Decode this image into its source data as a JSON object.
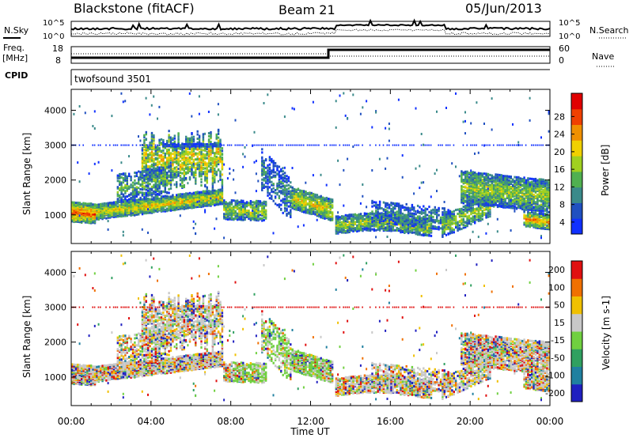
{
  "header": {
    "station": "Blackstone (fitACF)",
    "beam": "Beam 21",
    "date": "05/Jun/2013"
  },
  "top_panels": {
    "nsky_label": "N.Sky",
    "nsearch_label": "N.Search",
    "noise_ticks": [
      "10^5",
      "10^0"
    ],
    "freq_label_1": "Freq.",
    "freq_label_2": "[MHz]",
    "freq_ticks": [
      "18",
      "8"
    ],
    "nave_label": "Nave",
    "nave_ticks": [
      "60",
      "0"
    ],
    "cpid_label": "CPID",
    "cpid_value": "twofsound 3501"
  },
  "chart_data": [
    {
      "type": "heatmap",
      "name": "power",
      "ylabel": "Slant Range [km]",
      "yticks": [
        1000,
        2000,
        3000,
        4000
      ],
      "ylim": [
        180,
        4600
      ],
      "xlim_hours": [
        0,
        24
      ],
      "colorbar": {
        "label": "Power [dB]",
        "ticks": [
          "4",
          "8",
          "12",
          "16",
          "20",
          "24",
          "28"
        ],
        "colors": [
          "#1030ff",
          "#2050c0",
          "#3a8a8a",
          "#50b050",
          "#a0d020",
          "#f0d000",
          "#f09000",
          "#f04000",
          "#e00000"
        ]
      }
    },
    {
      "type": "heatmap",
      "name": "velocity",
      "ylabel": "Slant Range [km]",
      "yticks": [
        1000,
        2000,
        3000,
        4000
      ],
      "ylim": [
        180,
        4600
      ],
      "xlim_hours": [
        0,
        24
      ],
      "colorbar": {
        "label": "Velocity [m s-1]",
        "ticks": [
          "200",
          "100",
          "50",
          "15",
          "-15",
          "-50",
          "-100",
          "-200"
        ],
        "colors": [
          "#2020c0",
          "#2080a0",
          "#30a060",
          "#70d040",
          "#c8c8c8",
          "#f0c000",
          "#f07000",
          "#e01010"
        ]
      }
    }
  ],
  "x_axis": {
    "tick_labels": [
      "00:00",
      "04:00",
      "08:00",
      "12:00",
      "16:00",
      "20:00",
      "00:00"
    ],
    "label": "Time UT"
  }
}
